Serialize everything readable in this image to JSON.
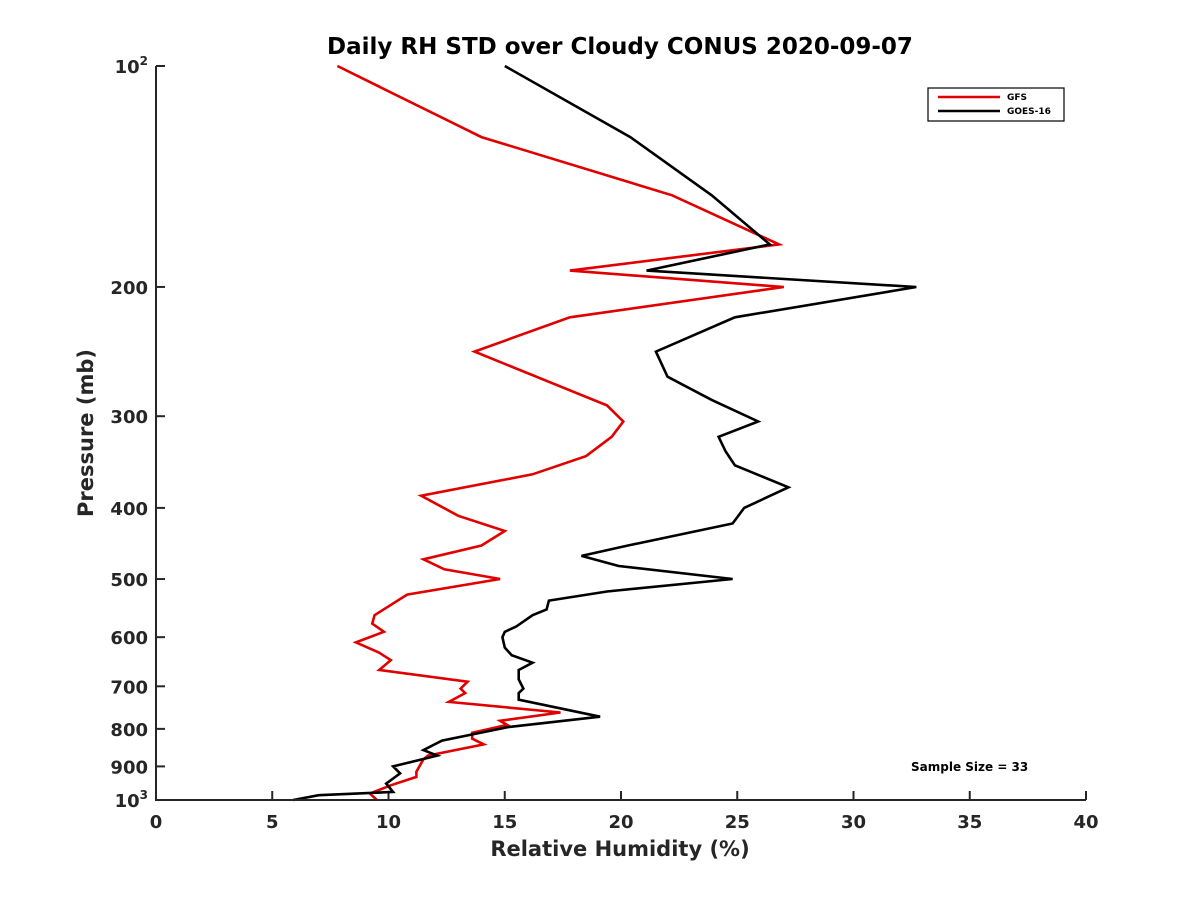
{
  "chart_data": {
    "type": "line",
    "title": "Daily RH STD over Cloudy CONUS 2020-09-07",
    "xlabel": "Relative Humidity (%)",
    "ylabel": "Pressure (mb)",
    "xlim": [
      0,
      40
    ],
    "ylim": [
      100,
      1000
    ],
    "y_scale": "log",
    "y_reversed": true,
    "grid": false,
    "legend_position": "top-right",
    "x_ticks": [
      "0",
      "5",
      "10",
      "15",
      "20",
      "25",
      "30",
      "35",
      "40"
    ],
    "y_ticks": [
      {
        "value": 100,
        "base": "10",
        "exp": "2"
      },
      {
        "value": 200,
        "label": "200"
      },
      {
        "value": 300,
        "label": "300"
      },
      {
        "value": 400,
        "label": "400"
      },
      {
        "value": 500,
        "label": "500"
      },
      {
        "value": 600,
        "label": "600"
      },
      {
        "value": 700,
        "label": "700"
      },
      {
        "value": 800,
        "label": "800"
      },
      {
        "value": 900,
        "label": "900"
      },
      {
        "value": 1000,
        "base": "10",
        "exp": "3"
      }
    ],
    "series": [
      {
        "name": "GFS",
        "color": "#e00000",
        "points": [
          [
            7.8,
            100
          ],
          [
            14.0,
            125
          ],
          [
            22.2,
            150
          ],
          [
            26.8,
            175
          ],
          [
            17.8,
            190
          ],
          [
            27.0,
            200
          ],
          [
            17.8,
            220
          ],
          [
            13.7,
            245
          ],
          [
            19.4,
            290
          ],
          [
            20.1,
            305
          ],
          [
            19.6,
            320
          ],
          [
            18.5,
            340
          ],
          [
            16.2,
            360
          ],
          [
            11.4,
            385
          ],
          [
            13.0,
            410
          ],
          [
            15.0,
            430
          ],
          [
            14.0,
            450
          ],
          [
            11.5,
            470
          ],
          [
            12.4,
            485
          ],
          [
            14.8,
            500
          ],
          [
            10.8,
            525
          ],
          [
            9.4,
            560
          ],
          [
            9.3,
            575
          ],
          [
            9.8,
            590
          ],
          [
            8.6,
            610
          ],
          [
            9.6,
            630
          ],
          [
            10.1,
            645
          ],
          [
            9.6,
            665
          ],
          [
            13.4,
            690
          ],
          [
            13.1,
            705
          ],
          [
            13.3,
            715
          ],
          [
            12.6,
            735
          ],
          [
            17.4,
            760
          ],
          [
            14.8,
            780
          ],
          [
            15.1,
            790
          ],
          [
            13.6,
            810
          ],
          [
            13.6,
            825
          ],
          [
            14.1,
            840
          ],
          [
            11.7,
            870
          ],
          [
            11.5,
            880
          ],
          [
            11.2,
            915
          ],
          [
            11.2,
            930
          ],
          [
            10.1,
            955
          ],
          [
            9.2,
            980
          ],
          [
            9.5,
            1000
          ]
        ]
      },
      {
        "name": "GOES-16",
        "color": "#000000",
        "points": [
          [
            15.0,
            100
          ],
          [
            20.4,
            125
          ],
          [
            23.9,
            150
          ],
          [
            26.4,
            175
          ],
          [
            21.1,
            190
          ],
          [
            32.7,
            200
          ],
          [
            24.9,
            220
          ],
          [
            21.5,
            245
          ],
          [
            22.0,
            265
          ],
          [
            23.9,
            285
          ],
          [
            25.9,
            305
          ],
          [
            24.2,
            320
          ],
          [
            24.5,
            335
          ],
          [
            24.9,
            350
          ],
          [
            27.2,
            375
          ],
          [
            25.3,
            400
          ],
          [
            24.8,
            420
          ],
          [
            20.3,
            450
          ],
          [
            18.3,
            465
          ],
          [
            19.9,
            480
          ],
          [
            24.8,
            500
          ],
          [
            19.4,
            520
          ],
          [
            16.9,
            535
          ],
          [
            16.8,
            550
          ],
          [
            16.2,
            560
          ],
          [
            15.5,
            580
          ],
          [
            15.0,
            590
          ],
          [
            14.9,
            600
          ],
          [
            15.0,
            620
          ],
          [
            15.3,
            635
          ],
          [
            16.2,
            650
          ],
          [
            15.6,
            665
          ],
          [
            15.6,
            685
          ],
          [
            15.8,
            705
          ],
          [
            15.6,
            715
          ],
          [
            15.6,
            730
          ],
          [
            19.1,
            770
          ],
          [
            15.2,
            795
          ],
          [
            12.3,
            830
          ],
          [
            11.5,
            855
          ],
          [
            12.1,
            870
          ],
          [
            10.2,
            900
          ],
          [
            10.5,
            920
          ],
          [
            9.9,
            950
          ],
          [
            10.2,
            975
          ],
          [
            7.0,
            985
          ],
          [
            5.9,
            1000
          ]
        ]
      }
    ],
    "annotation": "Sample Size = 33"
  }
}
